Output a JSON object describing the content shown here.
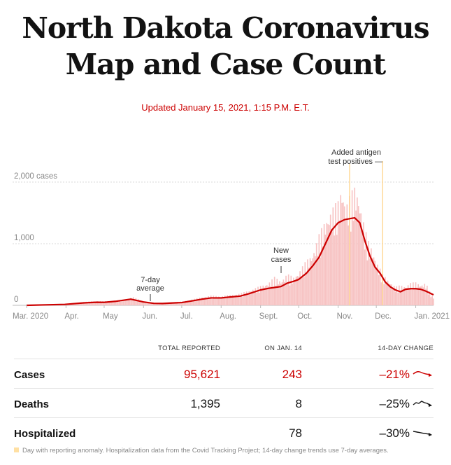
{
  "header": {
    "title_line1": "North Dakota Coronavirus",
    "title_line2": "Map and Case Count",
    "updated": "Updated January 15, 2021, 1:15 P.M. E.T."
  },
  "colors": {
    "accent": "#cc0000",
    "bars": "#f7c3c3",
    "anomaly": "#ffd48a",
    "grid": "#d9d9d9"
  },
  "chart_data": {
    "type": "bar",
    "ylim": [
      0,
      2000
    ],
    "y_ticks": [
      {
        "value": 0,
        "label": "0"
      },
      {
        "value": 1000,
        "label": "1,000"
      },
      {
        "value": 2000,
        "label": "2,000 cases"
      }
    ],
    "x_ticks": [
      "Mar. 2020",
      "Apr.",
      "May",
      "Jun.",
      "Jul.",
      "Aug.",
      "Sept.",
      "Oct.",
      "Nov.",
      "Dec.",
      "Jan. 2021"
    ],
    "x_tick_days": [
      0,
      31,
      61,
      92,
      122,
      153,
      184,
      214,
      245,
      275,
      306
    ],
    "total_days": 320,
    "series": [
      {
        "name": "New cases",
        "kind": "bars",
        "daily_values_by_day": [
          [
            0,
            0
          ],
          [
            15,
            10
          ],
          [
            30,
            18
          ],
          [
            45,
            45
          ],
          [
            55,
            60
          ],
          [
            61,
            55
          ],
          [
            75,
            70
          ],
          [
            84,
            110
          ],
          [
            92,
            55
          ],
          [
            100,
            35
          ],
          [
            107,
            30
          ],
          [
            115,
            45
          ],
          [
            122,
            50
          ],
          [
            130,
            80
          ],
          [
            138,
            110
          ],
          [
            145,
            130
          ],
          [
            153,
            125
          ],
          [
            160,
            140
          ],
          [
            168,
            160
          ],
          [
            175,
            200
          ],
          [
            184,
            260
          ],
          [
            190,
            300
          ],
          [
            195,
            380
          ],
          [
            200,
            330
          ],
          [
            205,
            420
          ],
          [
            210,
            380
          ],
          [
            214,
            450
          ],
          [
            220,
            600
          ],
          [
            225,
            700
          ],
          [
            230,
            950
          ],
          [
            235,
            1150
          ],
          [
            240,
            1300
          ],
          [
            245,
            1400
          ],
          [
            248,
            1600
          ],
          [
            251,
            1350
          ],
          [
            255,
            1500
          ],
          [
            258,
            1600
          ],
          [
            261,
            1500
          ],
          [
            264,
            1200
          ],
          [
            268,
            900
          ],
          [
            272,
            750
          ],
          [
            275,
            600
          ],
          [
            280,
            420
          ],
          [
            285,
            330
          ],
          [
            290,
            250
          ],
          [
            294,
            270
          ],
          [
            298,
            260
          ],
          [
            302,
            300
          ],
          [
            306,
            310
          ],
          [
            310,
            280
          ],
          [
            314,
            300
          ],
          [
            318,
            150
          ],
          [
            320,
            110
          ]
        ]
      },
      {
        "name": "7-day average",
        "kind": "line",
        "points": [
          [
            0,
            0
          ],
          [
            15,
            8
          ],
          [
            30,
            15
          ],
          [
            45,
            40
          ],
          [
            55,
            50
          ],
          [
            61,
            48
          ],
          [
            70,
            65
          ],
          [
            82,
            100
          ],
          [
            92,
            55
          ],
          [
            100,
            32
          ],
          [
            107,
            30
          ],
          [
            115,
            38
          ],
          [
            122,
            45
          ],
          [
            130,
            72
          ],
          [
            138,
            100
          ],
          [
            145,
            120
          ],
          [
            153,
            120
          ],
          [
            160,
            135
          ],
          [
            168,
            150
          ],
          [
            175,
            190
          ],
          [
            184,
            250
          ],
          [
            190,
            275
          ],
          [
            195,
            290
          ],
          [
            200,
            305
          ],
          [
            205,
            360
          ],
          [
            210,
            390
          ],
          [
            214,
            420
          ],
          [
            220,
            520
          ],
          [
            225,
            640
          ],
          [
            230,
            780
          ],
          [
            235,
            1000
          ],
          [
            240,
            1220
          ],
          [
            245,
            1340
          ],
          [
            250,
            1390
          ],
          [
            255,
            1410
          ],
          [
            258,
            1420
          ],
          [
            262,
            1340
          ],
          [
            266,
            1050
          ],
          [
            270,
            800
          ],
          [
            274,
            620
          ],
          [
            278,
            520
          ],
          [
            282,
            380
          ],
          [
            286,
            300
          ],
          [
            290,
            250
          ],
          [
            294,
            220
          ],
          [
            298,
            260
          ],
          [
            302,
            270
          ],
          [
            306,
            270
          ],
          [
            310,
            260
          ],
          [
            314,
            230
          ],
          [
            318,
            190
          ],
          [
            320,
            170
          ]
        ]
      }
    ],
    "anomaly_days": [
      254,
      280
    ],
    "annotations": [
      {
        "label_lines": [
          "Added antigen",
          "test positives —"
        ],
        "day": 280
      },
      {
        "label_lines": [
          "New",
          "cases"
        ],
        "day": 198
      },
      {
        "label_lines": [
          "7-day",
          "average"
        ],
        "day": 98
      }
    ]
  },
  "table": {
    "headers": {
      "total": "TOTAL REPORTED",
      "day": "ON JAN. 14",
      "change": "14-DAY CHANGE"
    },
    "rows": [
      {
        "label": "Cases",
        "total": "95,621",
        "day": "243",
        "change": "–21%",
        "trend_color": "#cc0000"
      },
      {
        "label": "Deaths",
        "total": "1,395",
        "day": "8",
        "change": "–25%",
        "trend_color": "#121212"
      },
      {
        "label": "Hospitalized",
        "total": "",
        "day": "78",
        "change": "–30%",
        "trend_color": "#121212"
      }
    ]
  },
  "footnote": "Day with reporting anomaly. Hospitalization data from the Covid Tracking Project; 14-day change trends use 7-day averages."
}
